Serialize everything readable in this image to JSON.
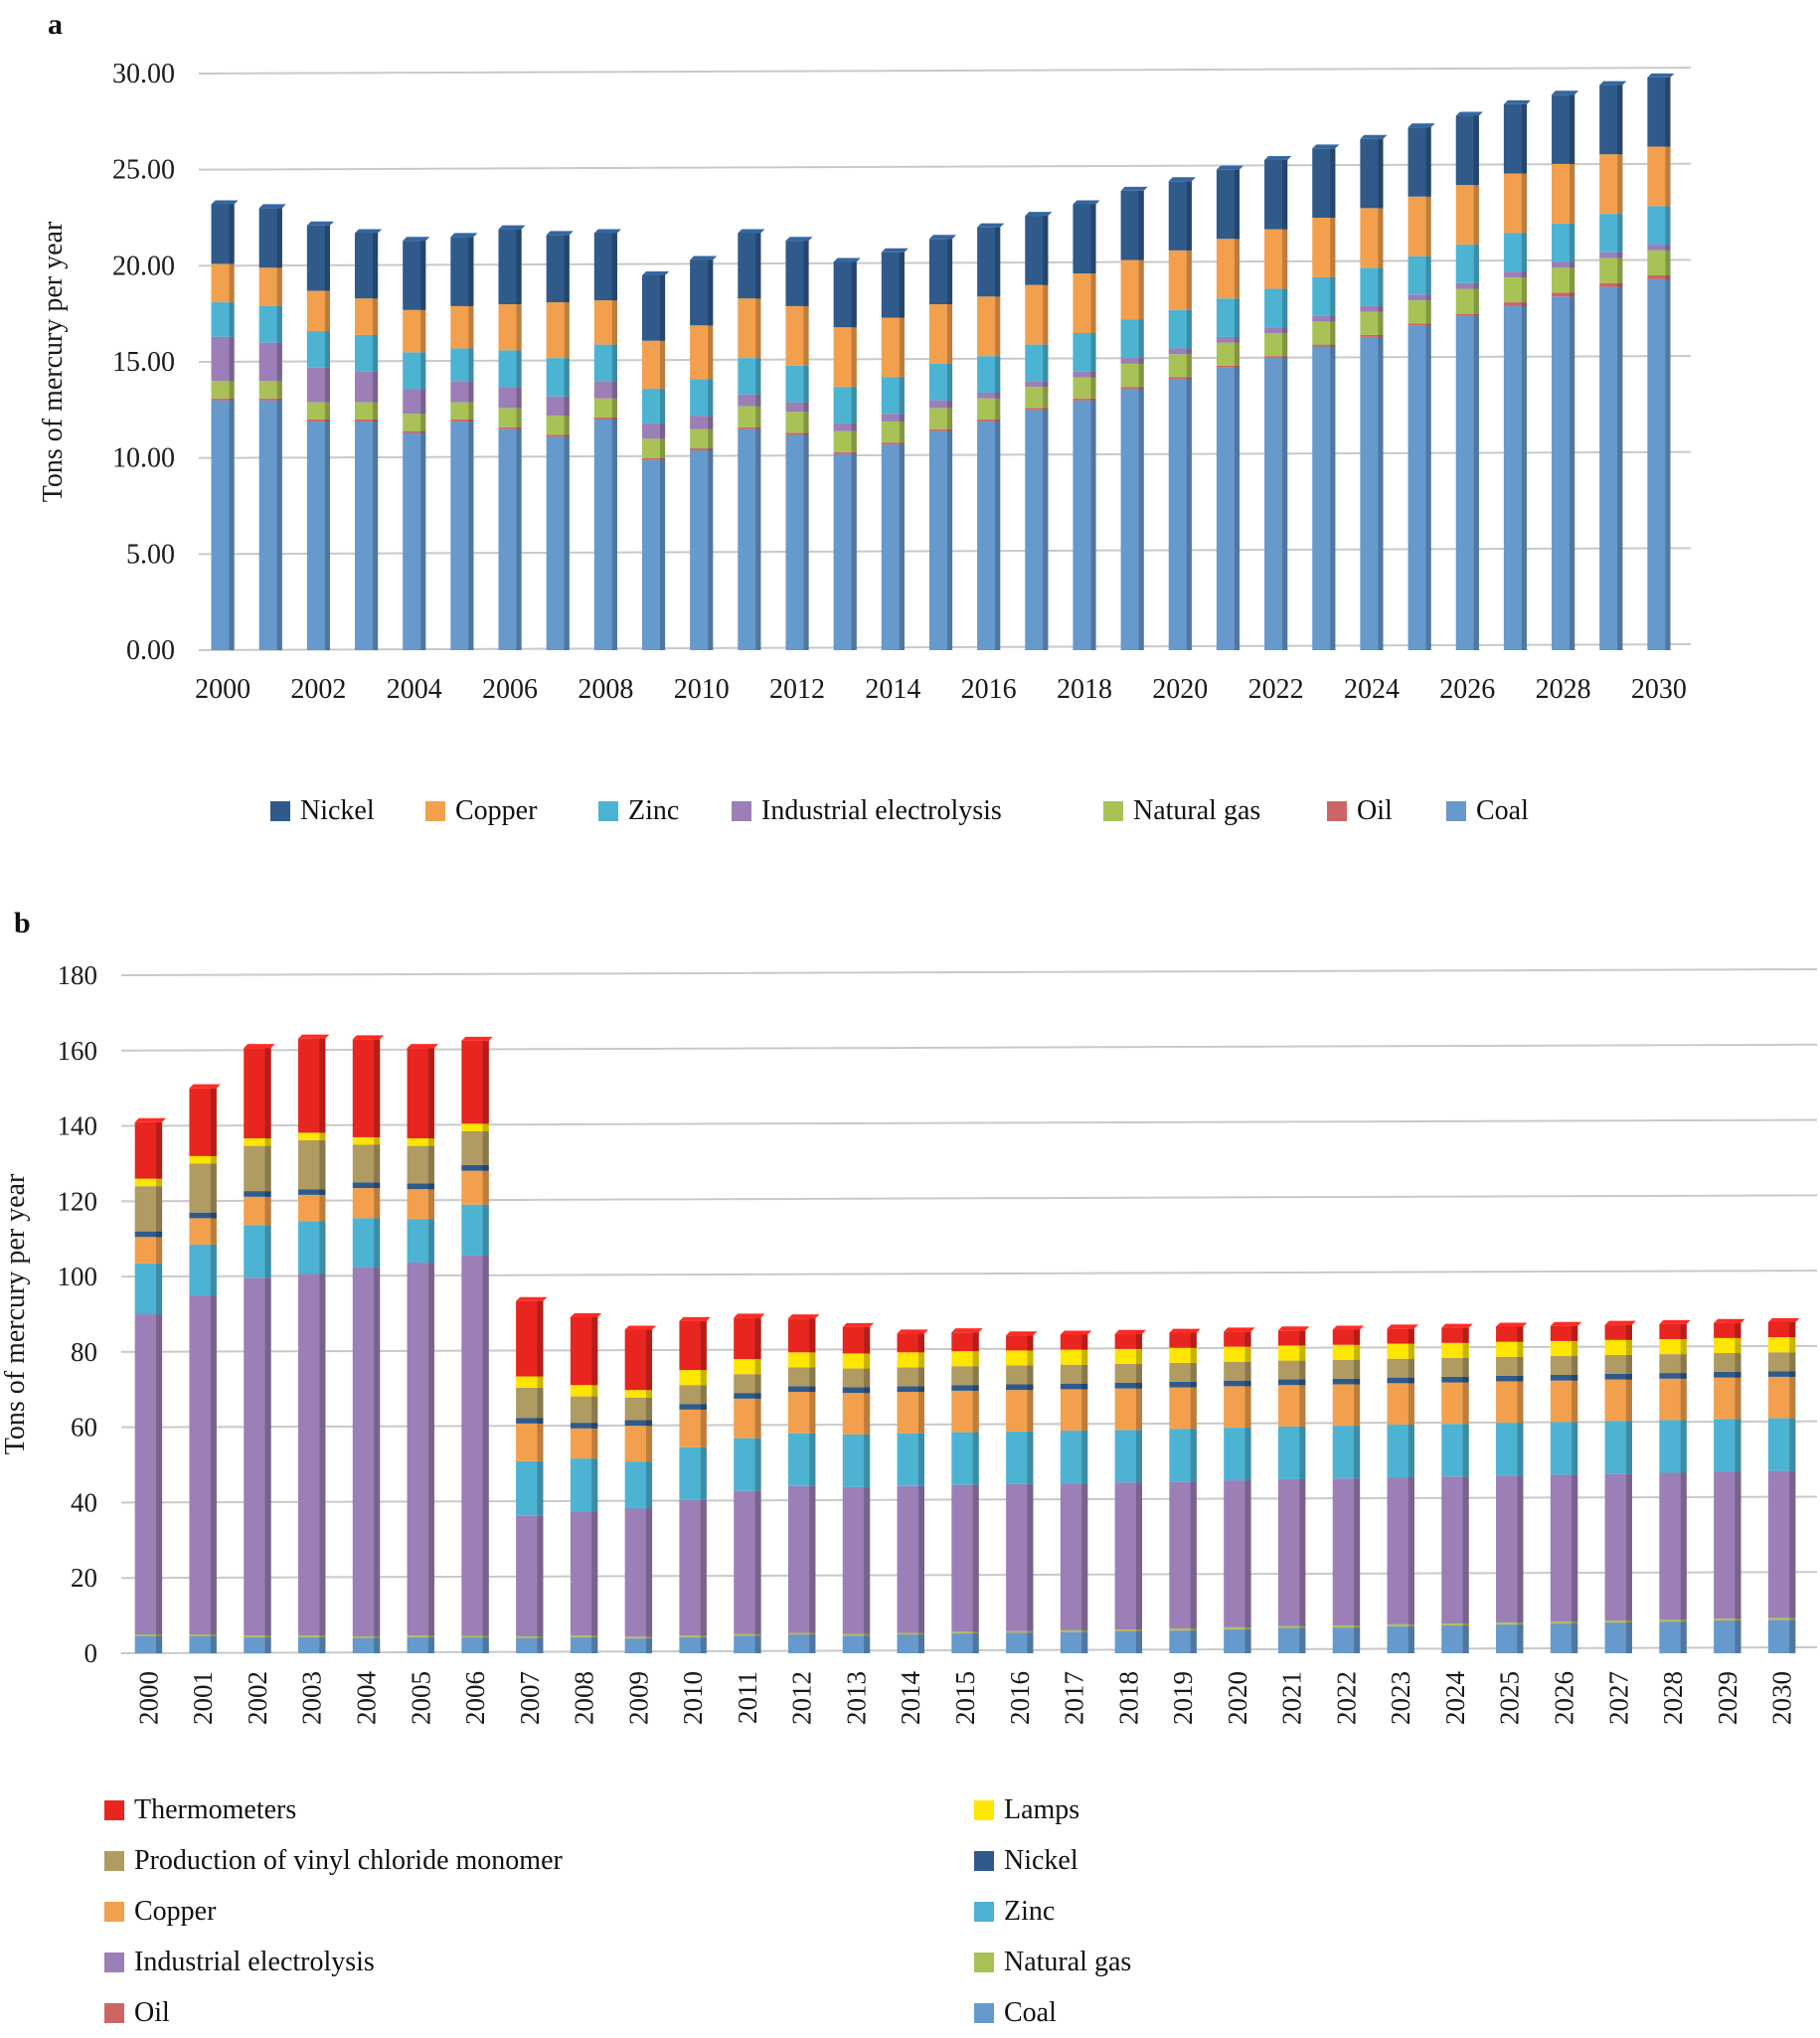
{
  "chart_data": [
    {
      "panel": "a",
      "type": "bar",
      "stacked": true,
      "ylabel": "Tons of mercury per year",
      "ylim": [
        0,
        30
      ],
      "yticks": [
        "0.00",
        "5.00",
        "10.00",
        "15.00",
        "20.00",
        "25.00",
        "30.00"
      ],
      "x": [
        2000,
        2001,
        2002,
        2003,
        2004,
        2005,
        2006,
        2007,
        2008,
        2009,
        2010,
        2011,
        2012,
        2013,
        2014,
        2015,
        2016,
        2017,
        2018,
        2019,
        2020,
        2021,
        2022,
        2023,
        2024,
        2025,
        2026,
        2027,
        2028,
        2029,
        2030
      ],
      "xtick_labels": [
        "2000",
        "2002",
        "2004",
        "2006",
        "2008",
        "2010",
        "2012",
        "2014",
        "2016",
        "2018",
        "2020",
        "2022",
        "2024",
        "2026",
        "2028",
        "2030"
      ],
      "series": [
        {
          "name": "Coal",
          "color": "#6699cc",
          "values": [
            13.0,
            13.0,
            11.9,
            11.9,
            11.3,
            11.9,
            11.5,
            11.1,
            12.0,
            9.9,
            10.4,
            11.5,
            11.2,
            10.2,
            10.7,
            11.4,
            11.9,
            12.5,
            13.0,
            13.6,
            14.1,
            14.7,
            15.2,
            15.8,
            16.3,
            16.9,
            17.4,
            17.9,
            18.4,
            18.9,
            19.3
          ]
        },
        {
          "name": "Oil",
          "color": "#cc6666",
          "values": [
            0.1,
            0.1,
            0.1,
            0.1,
            0.1,
            0.1,
            0.1,
            0.1,
            0.1,
            0.1,
            0.1,
            0.1,
            0.1,
            0.1,
            0.1,
            0.1,
            0.1,
            0.1,
            0.1,
            0.1,
            0.1,
            0.1,
            0.1,
            0.1,
            0.1,
            0.1,
            0.1,
            0.2,
            0.2,
            0.2,
            0.2
          ]
        },
        {
          "name": "Natural gas",
          "color": "#a8c256",
          "values": [
            0.9,
            0.9,
            0.9,
            0.9,
            0.9,
            0.9,
            1.0,
            1.0,
            1.0,
            1.0,
            1.0,
            1.1,
            1.1,
            1.1,
            1.1,
            1.1,
            1.1,
            1.1,
            1.1,
            1.2,
            1.2,
            1.2,
            1.2,
            1.2,
            1.2,
            1.2,
            1.3,
            1.3,
            1.3,
            1.3,
            1.3
          ]
        },
        {
          "name": "Industrial electrolysis",
          "color": "#9b7fb6",
          "values": [
            2.3,
            2.0,
            1.8,
            1.6,
            1.3,
            1.1,
            1.1,
            1.0,
            0.9,
            0.8,
            0.7,
            0.6,
            0.5,
            0.4,
            0.4,
            0.4,
            0.3,
            0.3,
            0.3,
            0.3,
            0.3,
            0.3,
            0.3,
            0.3,
            0.3,
            0.3,
            0.3,
            0.3,
            0.3,
            0.3,
            0.3
          ]
        },
        {
          "name": "Zinc",
          "color": "#4db3d3",
          "values": [
            1.8,
            1.9,
            1.9,
            1.9,
            1.9,
            1.7,
            1.9,
            2.0,
            1.9,
            1.8,
            1.9,
            1.9,
            1.9,
            1.9,
            1.9,
            1.9,
            1.9,
            1.9,
            2.0,
            2.0,
            2.0,
            2.0,
            2.0,
            2.0,
            2.0,
            2.0,
            2.0,
            2.0,
            2.0,
            2.0,
            2.0
          ]
        },
        {
          "name": "Copper",
          "color": "#f2a04d",
          "values": [
            2.0,
            2.0,
            2.1,
            1.9,
            2.2,
            2.2,
            2.4,
            2.9,
            2.3,
            2.5,
            2.8,
            3.1,
            3.1,
            3.1,
            3.1,
            3.1,
            3.1,
            3.1,
            3.1,
            3.1,
            3.1,
            3.1,
            3.1,
            3.1,
            3.1,
            3.1,
            3.1,
            3.1,
            3.1,
            3.1,
            3.1
          ]
        },
        {
          "name": "Nickel",
          "color": "#2f5a8a",
          "values": [
            3.1,
            3.1,
            3.4,
            3.4,
            3.6,
            3.6,
            3.9,
            3.5,
            3.5,
            3.4,
            3.4,
            3.4,
            3.4,
            3.4,
            3.4,
            3.4,
            3.6,
            3.6,
            3.6,
            3.6,
            3.6,
            3.6,
            3.6,
            3.6,
            3.6,
            3.6,
            3.6,
            3.6,
            3.6,
            3.6,
            3.6
          ]
        }
      ],
      "legend_order": [
        "Nickel",
        "Copper",
        "Zinc",
        "Industrial electrolysis",
        "Natural gas",
        "Oil",
        "Coal"
      ]
    },
    {
      "panel": "b",
      "type": "bar",
      "stacked": true,
      "ylabel": "Tons of mercury per year",
      "ylim": [
        0,
        180
      ],
      "yticks": [
        "0",
        "20",
        "40",
        "60",
        "80",
        "100",
        "120",
        "140",
        "160",
        "180"
      ],
      "x": [
        2000,
        2001,
        2002,
        2003,
        2004,
        2005,
        2006,
        2007,
        2008,
        2009,
        2010,
        2011,
        2012,
        2013,
        2014,
        2015,
        2016,
        2017,
        2018,
        2019,
        2020,
        2021,
        2022,
        2023,
        2024,
        2025,
        2026,
        2027,
        2028,
        2029,
        2030
      ],
      "xtick_labels": [
        "2000",
        "2001",
        "2002",
        "2003",
        "2004",
        "2005",
        "2006",
        "2007",
        "2008",
        "2009",
        "2010",
        "2011",
        "2012",
        "2013",
        "2014",
        "2015",
        "2016",
        "2017",
        "2018",
        "2019",
        "2020",
        "2021",
        "2022",
        "2023",
        "2024",
        "2025",
        "2026",
        "2027",
        "2028",
        "2029",
        "2030"
      ],
      "series": [
        {
          "name": "Coal",
          "color": "#6699cc",
          "values": [
            4.5,
            4.5,
            4.2,
            4.2,
            4.0,
            4.2,
            4.1,
            4.0,
            4.2,
            3.9,
            4.2,
            4.6,
            4.9,
            4.6,
            4.9,
            5.2,
            5.4,
            5.6,
            5.8,
            6.0,
            6.3,
            6.6,
            6.8,
            7.1,
            7.3,
            7.6,
            7.8,
            8.1,
            8.3,
            8.6,
            8.8
          ]
        },
        {
          "name": "Oil",
          "color": "#cc6666",
          "values": [
            0.1,
            0.1,
            0.1,
            0.1,
            0.1,
            0.1,
            0.1,
            0.1,
            0.1,
            0.1,
            0.1,
            0.1,
            0.1,
            0.1,
            0.1,
            0.1,
            0.1,
            0.1,
            0.1,
            0.1,
            0.1,
            0.1,
            0.1,
            0.1,
            0.1,
            0.1,
            0.1,
            0.1,
            0.1,
            0.1,
            0.1
          ]
        },
        {
          "name": "Natural gas",
          "color": "#a8c256",
          "values": [
            0.4,
            0.4,
            0.4,
            0.4,
            0.4,
            0.4,
            0.4,
            0.4,
            0.4,
            0.4,
            0.4,
            0.4,
            0.4,
            0.4,
            0.4,
            0.4,
            0.4,
            0.4,
            0.4,
            0.5,
            0.5,
            0.5,
            0.5,
            0.5,
            0.5,
            0.5,
            0.5,
            0.5,
            0.5,
            0.5,
            0.5
          ]
        },
        {
          "name": "Industrial electrolysis",
          "color": "#9b7fb6",
          "values": [
            85,
            90,
            95,
            96,
            98,
            99,
            101,
            32,
            33,
            34,
            36,
            38,
            39,
            39,
            39,
            39,
            39,
            39,
            39,
            39,
            39,
            39,
            39,
            39,
            39,
            39,
            39,
            39,
            39,
            39,
            39
          ]
        },
        {
          "name": "Zinc",
          "color": "#4db3d3",
          "values": [
            13.5,
            13.5,
            14,
            14,
            13,
            11.5,
            13.5,
            14.5,
            14,
            12.5,
            14,
            14,
            14,
            14,
            14,
            14,
            14,
            14,
            14,
            14,
            14,
            14,
            14,
            14,
            14,
            14,
            14,
            14,
            14,
            14,
            14
          ]
        },
        {
          "name": "Copper",
          "color": "#f2a04d",
          "values": [
            7,
            7,
            7.5,
            7,
            8,
            8,
            9,
            10,
            8,
            9.5,
            10,
            10.5,
            11,
            11,
            11,
            11,
            11,
            11,
            11,
            11,
            11,
            11,
            11,
            11,
            11,
            11,
            11,
            11,
            11,
            11,
            11
          ]
        },
        {
          "name": "Nickel",
          "color": "#2f5a8a",
          "values": [
            1.5,
            1.5,
            1.5,
            1.5,
            1.5,
            1.5,
            1.5,
            1.5,
            1.5,
            1.5,
            1.5,
            1.5,
            1.5,
            1.5,
            1.5,
            1.5,
            1.5,
            1.5,
            1.5,
            1.5,
            1.5,
            1.5,
            1.5,
            1.5,
            1.5,
            1.5,
            1.5,
            1.5,
            1.5,
            1.5,
            1.5
          ]
        },
        {
          "name": "Production of vinyl chloride monomer",
          "color": "#b09b62",
          "values": [
            12,
            13,
            12,
            13,
            10,
            10,
            9,
            8,
            7,
            6,
            5,
            5,
            5,
            5,
            5,
            5,
            5,
            5,
            5,
            5,
            5,
            5,
            5,
            5,
            5,
            5,
            5,
            5,
            5,
            5,
            5
          ]
        },
        {
          "name": "Lamps",
          "color": "#ffe600",
          "values": [
            2,
            2,
            2,
            2,
            2,
            2,
            2,
            3,
            3,
            2,
            4,
            4,
            4,
            4,
            4,
            4,
            4,
            4,
            4,
            4,
            4,
            4,
            4,
            4,
            4,
            4,
            4,
            4,
            4,
            4,
            4
          ]
        },
        {
          "name": "Thermometers",
          "color": "#e8251f",
          "values": [
            15,
            18,
            24,
            25,
            26,
            24,
            22,
            20,
            18,
            16,
            13,
            11,
            9,
            7,
            5,
            5,
            4,
            4,
            4,
            4,
            4,
            4,
            4,
            4,
            4,
            4,
            4,
            4,
            4,
            4,
            4
          ]
        }
      ],
      "legend_left": [
        "Thermometers",
        "Production of vinyl chloride monomer",
        "Copper",
        "Industrial electrolysis",
        "Oil"
      ],
      "legend_right": [
        "Lamps",
        "Nickel",
        "Zinc",
        "Natural gas",
        "Coal"
      ]
    }
  ],
  "panels": {
    "a_label": "a",
    "b_label": "b"
  }
}
